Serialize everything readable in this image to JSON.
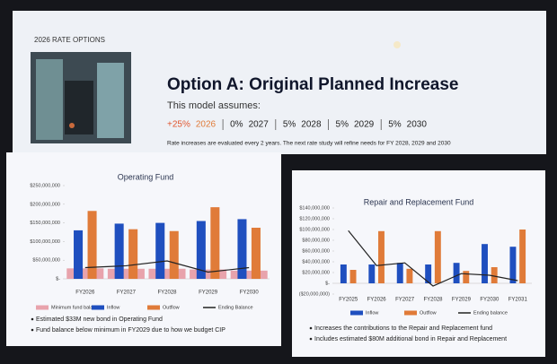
{
  "header": {
    "section": "2026 RATE OPTIONS",
    "title": "Option A: Original Planned Increase",
    "intro": "This model assumes:",
    "rates": [
      {
        "rate": "+25%",
        "year": "2026"
      },
      {
        "rate": "0%",
        "year": "2027"
      },
      {
        "rate": "5%",
        "year": "2028"
      },
      {
        "rate": "5%",
        "year": "2029"
      },
      {
        "rate": "5%",
        "year": "2030"
      }
    ],
    "footnote": "Rate increases are evaluated every 2 years. The next rate study will refine needs for FY 2028, 2029 and 2030"
  },
  "chart_data": [
    {
      "type": "combo",
      "title": "Operating Fund",
      "categories": [
        "FY2026",
        "FY2027",
        "FY2028",
        "FY2029",
        "FY2030"
      ],
      "series": [
        {
          "name": "Minimum fund balance",
          "kind": "band",
          "color": "#e8a3ac",
          "values": [
            28000000,
            27000000,
            27000000,
            25000000,
            22000000
          ]
        },
        {
          "name": "Inflow",
          "kind": "bar",
          "color": "#1f4fbf",
          "values": [
            130000000,
            148000000,
            150000000,
            155000000,
            160000000
          ]
        },
        {
          "name": "Outflow",
          "kind": "bar",
          "color": "#e07b39",
          "values": [
            182000000,
            133000000,
            128000000,
            192000000,
            137000000
          ]
        },
        {
          "name": "Ending Balance",
          "kind": "line",
          "color": "#222222",
          "values": [
            30000000,
            35000000,
            48000000,
            18000000,
            30000000
          ]
        }
      ],
      "ylim": [
        0,
        250000000
      ],
      "yticks": [
        {
          "value": 0,
          "label": "$-"
        },
        {
          "value": 50000000,
          "label": "$50,000,000"
        },
        {
          "value": 100000000,
          "label": "$100,000,000"
        },
        {
          "value": 150000000,
          "label": "$150,000,000"
        },
        {
          "value": 200000000,
          "label": "$200,000,000"
        },
        {
          "value": 250000000,
          "label": "$250,000,000"
        }
      ],
      "grid": false,
      "notes": [
        "Estimated $33M new bond in Operating Fund",
        "Fund balance below minimum in FY2029 due to how we budget CIP"
      ]
    },
    {
      "type": "combo",
      "title": "Repair and Replacement Fund",
      "categories": [
        "FY2025",
        "FY2026",
        "FY2027",
        "FY2028",
        "FY2029",
        "FY2030",
        "FY2031"
      ],
      "series": [
        {
          "name": "Inflow",
          "kind": "bar",
          "color": "#1f4fbf",
          "values": [
            35000000,
            35000000,
            38000000,
            35000000,
            38000000,
            73000000,
            68000000
          ]
        },
        {
          "name": "Outflow",
          "kind": "bar",
          "color": "#e07b39",
          "values": [
            25000000,
            97000000,
            27000000,
            97000000,
            23000000,
            30000000,
            100000000
          ]
        },
        {
          "name": "Ending balance",
          "kind": "line",
          "color": "#222222",
          "values": [
            98000000,
            33000000,
            38000000,
            -5000000,
            18000000,
            15000000,
            5000000
          ]
        }
      ],
      "ylim": [
        -20000000,
        140000000
      ],
      "yticks": [
        {
          "value": -20000000,
          "label": "($20,000,000)"
        },
        {
          "value": 0,
          "label": "$-"
        },
        {
          "value": 20000000,
          "label": "$20,000,000"
        },
        {
          "value": 40000000,
          "label": "$40,000,000"
        },
        {
          "value": 60000000,
          "label": "$60,000,000"
        },
        {
          "value": 80000000,
          "label": "$80,000,000"
        },
        {
          "value": 100000000,
          "label": "$100,000,000"
        },
        {
          "value": 120000000,
          "label": "$120,000,000"
        },
        {
          "value": 140000000,
          "label": "$140,000,000"
        }
      ],
      "grid": false,
      "notes": [
        "Increases the contributions to the Repair and Replacement fund",
        "Includes estimated $80M additional bond in Repair and Replacement"
      ]
    }
  ]
}
